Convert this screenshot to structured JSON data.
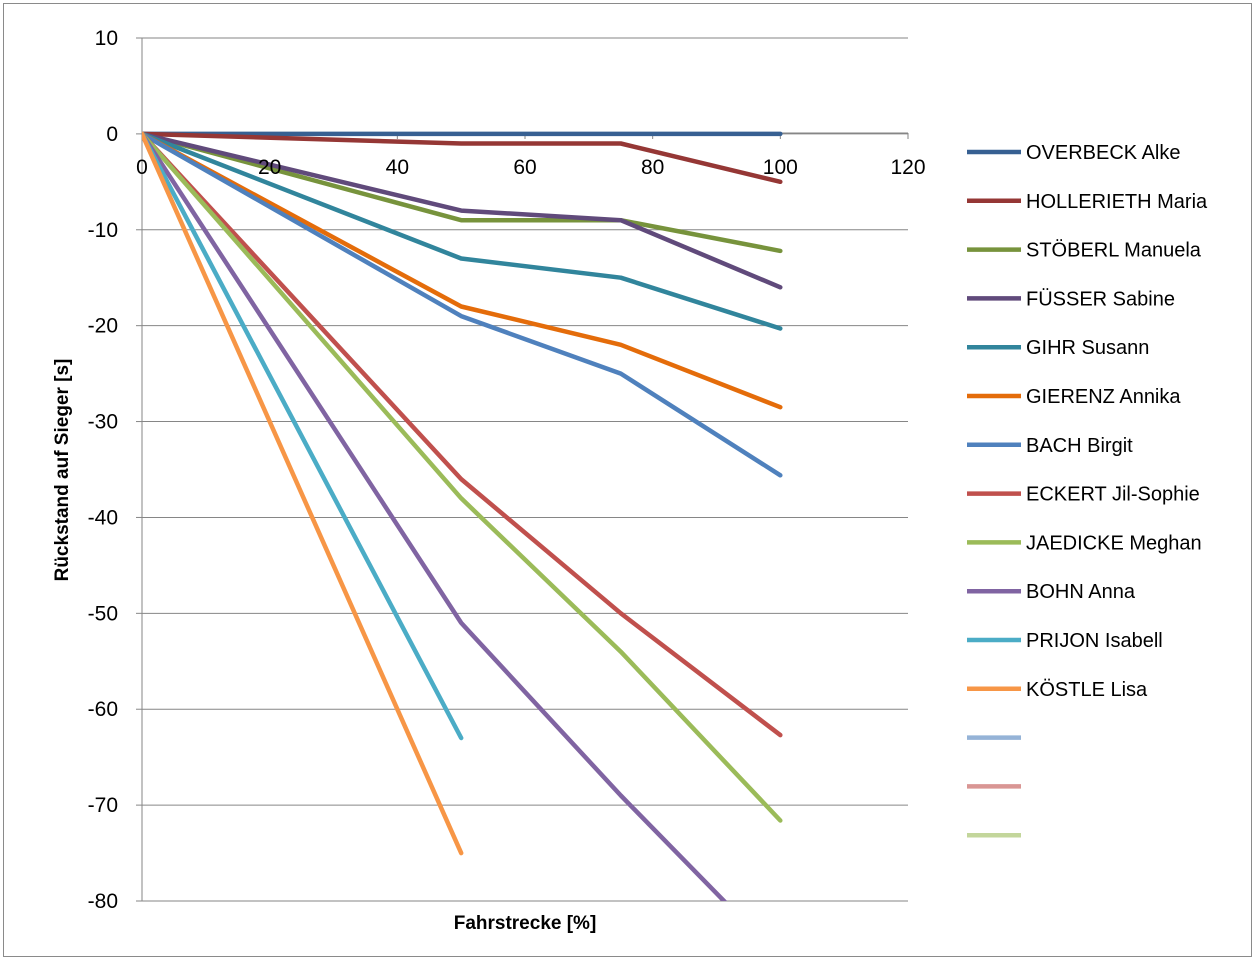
{
  "chart_data": {
    "type": "line",
    "xlabel": "Fahrstrecke [%]",
    "ylabel": "Rückstand auf Sieger   [s]",
    "xlim": [
      0,
      120
    ],
    "ylim": [
      -80,
      10
    ],
    "xticks": [
      0,
      20,
      40,
      60,
      80,
      100,
      120
    ],
    "yticks": [
      10,
      0,
      -10,
      -20,
      -30,
      -40,
      -50,
      -60,
      -70,
      -80
    ],
    "grid": "horizontal",
    "legend_position": "right",
    "series": [
      {
        "name": "OVERBECK Alke",
        "color": "#376092",
        "x": [
          0,
          50,
          75,
          100
        ],
        "y": [
          0,
          0,
          0,
          0
        ]
      },
      {
        "name": "HOLLERIETH Maria",
        "color": "#953735",
        "x": [
          0,
          50,
          75,
          100
        ],
        "y": [
          0,
          -1,
          -1,
          -5
        ]
      },
      {
        "name": "STÖBERL Manuela",
        "color": "#77933c",
        "x": [
          0,
          50,
          75,
          100
        ],
        "y": [
          0,
          -9,
          -9,
          -12.2
        ]
      },
      {
        "name": "FÜSSER Sabine",
        "color": "#604a7b",
        "x": [
          0,
          50,
          75,
          100
        ],
        "y": [
          0,
          -8,
          -9,
          -16
        ]
      },
      {
        "name": "GIHR Susann",
        "color": "#31859c",
        "x": [
          0,
          50,
          75,
          100
        ],
        "y": [
          0,
          -13,
          -15,
          -20.3
        ]
      },
      {
        "name": "GIERENZ Annika",
        "color": "#e46c0a",
        "x": [
          0,
          50,
          75,
          100
        ],
        "y": [
          0,
          -18,
          -22,
          -28.5
        ]
      },
      {
        "name": "BACH Birgit",
        "color": "#4f81bd",
        "x": [
          0,
          50,
          75,
          100
        ],
        "y": [
          0,
          -19,
          -25,
          -35.6
        ]
      },
      {
        "name": "ECKERT Jil-Sophie",
        "color": "#c0504d",
        "x": [
          0,
          50,
          75,
          100
        ],
        "y": [
          0,
          -36,
          -50,
          -62.7
        ]
      },
      {
        "name": "JAEDICKE Meghan",
        "color": "#9bbb59",
        "x": [
          0,
          50,
          75,
          100
        ],
        "y": [
          0,
          -38,
          -54,
          -71.6
        ]
      },
      {
        "name": "BOHN Anna",
        "color": "#8064a2",
        "x": [
          0,
          50,
          75,
          100
        ],
        "y": [
          0,
          -51,
          -69,
          -86
        ]
      },
      {
        "name": "PRIJON Isabell",
        "color": "#4bacc6",
        "x": [
          0,
          50
        ],
        "y": [
          0,
          -63
        ]
      },
      {
        "name": "KÖSTLE Lisa",
        "color": "#f79646",
        "x": [
          0,
          50
        ],
        "y": [
          0,
          -75
        ]
      },
      {
        "name": "",
        "color": "#95b3d7",
        "x": [],
        "y": []
      },
      {
        "name": "",
        "color": "#d99694",
        "x": [],
        "y": []
      },
      {
        "name": "",
        "color": "#c3d69b",
        "x": [],
        "y": []
      }
    ]
  }
}
